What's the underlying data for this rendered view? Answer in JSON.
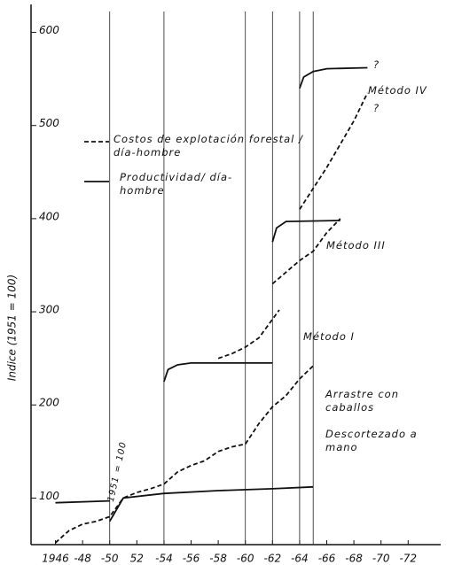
{
  "chart_data": {
    "type": "line",
    "y_label": "Indice (1951 = 100)",
    "xlim": [
      1944.2,
      1974.4
    ],
    "ylim": [
      50,
      630
    ],
    "xticks": [
      {
        "value": 1946,
        "label": "1946"
      },
      {
        "value": 1948,
        "label": "-48"
      },
      {
        "value": 1950,
        "label": "-50"
      },
      {
        "value": 1952,
        "label": "52"
      },
      {
        "value": 1954,
        "label": "-54"
      },
      {
        "value": 1956,
        "label": "-56"
      },
      {
        "value": 1958,
        "label": "-58"
      },
      {
        "value": 1960,
        "label": "-60"
      },
      {
        "value": 1962,
        "label": "-62"
      },
      {
        "value": 1964,
        "label": "-64"
      },
      {
        "value": 1966,
        "label": "-66"
      },
      {
        "value": 1968,
        "label": "-68"
      },
      {
        "value": 1970,
        "label": "-70"
      },
      {
        "value": 1972,
        "label": "-72"
      }
    ],
    "yticks": [
      100,
      200,
      300,
      400,
      500,
      600
    ],
    "vlines": [
      1950,
      1954,
      1960,
      1962,
      1964,
      1965
    ],
    "series": [
      {
        "name": "Costos de explotación forestal / día-hombre",
        "color": "#111111",
        "style": "dashed",
        "x": [
          1946,
          1947,
          1948,
          1949,
          1950,
          1951,
          1952,
          1953,
          1954,
          1955,
          1956,
          1957,
          1958,
          1959,
          1960,
          1961,
          1962,
          1963,
          1964,
          1965,
          null,
          1958,
          1959,
          1960,
          1961,
          1962,
          1962.5,
          null,
          1962,
          1964,
          1965,
          1966,
          1967,
          null,
          1964,
          1966,
          1968,
          1969
        ],
        "values": [
          52,
          65,
          72,
          75,
          80,
          100,
          106,
          110,
          115,
          128,
          135,
          140,
          150,
          155,
          158,
          180,
          198,
          210,
          228,
          242,
          null,
          250,
          255,
          262,
          272,
          292,
          302,
          null,
          330,
          355,
          365,
          385,
          400,
          null,
          410,
          455,
          505,
          535
        ]
      },
      {
        "name": "Productividad/ día-hombre",
        "color": "#111111",
        "style": "solid",
        "x": [
          1946,
          1950,
          null,
          1950,
          1951,
          1954,
          1958,
          1962,
          1965,
          null,
          1954,
          1954.3,
          1955,
          1956,
          1962,
          null,
          1962,
          1962.3,
          1963,
          1967,
          null,
          1964,
          1964.3,
          1965,
          1966,
          1969
        ],
        "values": [
          95,
          97,
          null,
          75,
          100,
          105,
          108,
          110,
          112,
          null,
          225,
          238,
          243,
          245,
          245,
          null,
          375,
          390,
          397,
          398,
          null,
          540,
          552,
          558,
          561,
          562
        ]
      }
    ],
    "annotations": [
      "Método IV",
      "?",
      "?",
      "Método III",
      "Método I",
      "Arrastre con caballos",
      "Descortezado a mano",
      "1951 = 100"
    ]
  }
}
